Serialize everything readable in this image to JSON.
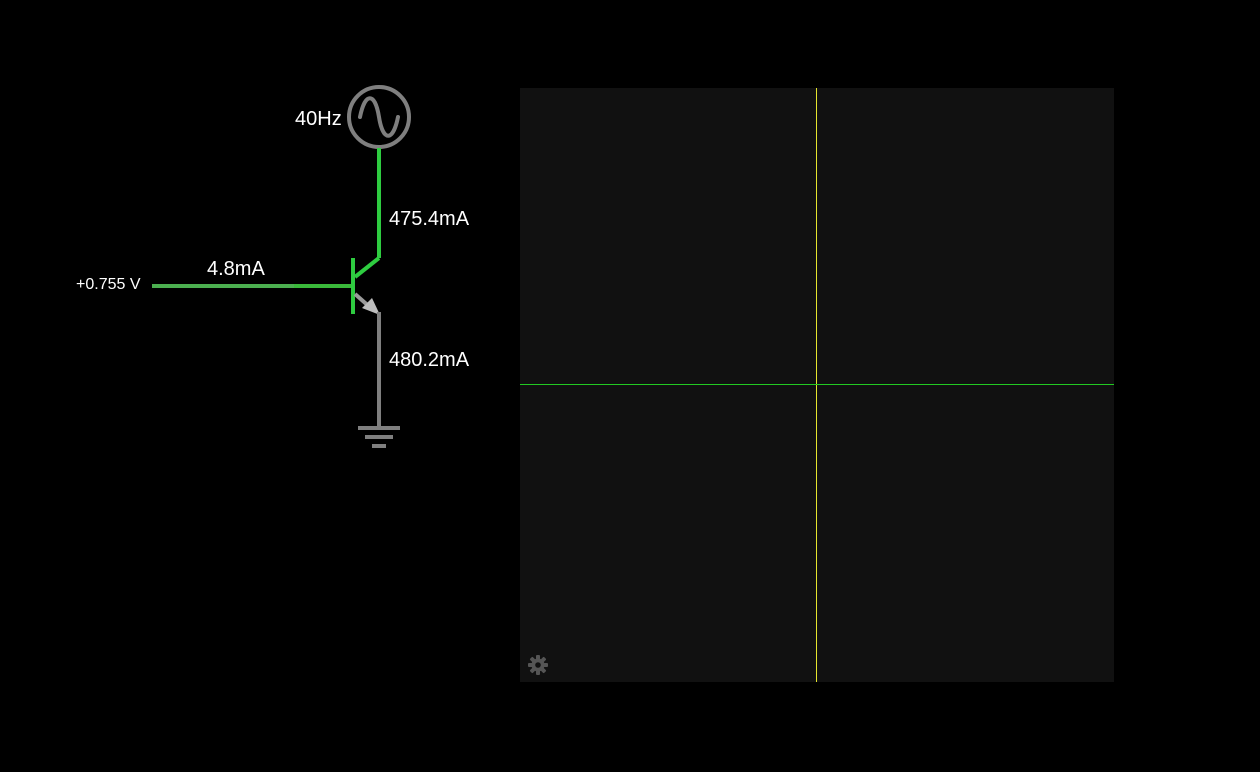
{
  "circuit": {
    "source": {
      "frequency_label": "40Hz",
      "icon": "ac-source-icon"
    },
    "collector_current": "475.4mA",
    "base_current": "4.8mA",
    "base_voltage": "+0.755 V",
    "emitter_current": "480.2mA",
    "colors": {
      "active_wire": "#2ecc40",
      "dim_wire": "#5cb85c",
      "inactive_wire": "#7f7f7f",
      "text": "#ffffff"
    }
  },
  "scope": {
    "background": "#111111",
    "x_axis_color": "#22c922",
    "y_axis_color": "#e6e62e",
    "settings_icon": "gear-icon"
  }
}
